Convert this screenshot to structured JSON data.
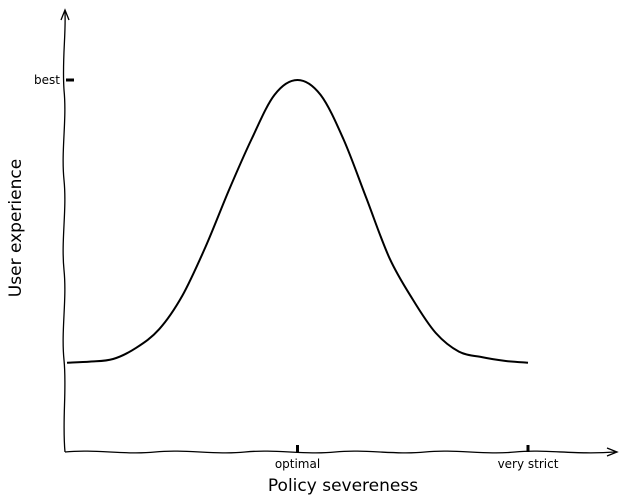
{
  "chart_data": {
    "type": "line",
    "title": "",
    "xlabel": "Policy severeness",
    "ylabel": "User experience",
    "x_ticks": [
      {
        "x": 5,
        "label": "optimal"
      },
      {
        "x": 10,
        "label": "very strict"
      }
    ],
    "y_ticks": [
      {
        "y": 1,
        "label": "best"
      }
    ],
    "xlim": [
      0,
      11.8
    ],
    "ylim": [
      0,
      1.2
    ],
    "series": [
      {
        "x": [
          0,
          0.5,
          1,
          1.5,
          2,
          2.5,
          3,
          3.5,
          4,
          4.5,
          5,
          5.5,
          6,
          6.5,
          7,
          7.5,
          8,
          8.5,
          9,
          9.5,
          10
        ],
        "y": [
          0.24,
          0.243,
          0.25,
          0.28,
          0.33,
          0.42,
          0.55,
          0.7,
          0.84,
          0.96,
          1.0,
          0.96,
          0.84,
          0.68,
          0.52,
          0.41,
          0.32,
          0.27,
          0.255,
          0.245,
          0.24
        ]
      }
    ],
    "grid": false,
    "legend": "none"
  },
  "colors": {
    "line": "#000000",
    "axis": "#000000"
  }
}
